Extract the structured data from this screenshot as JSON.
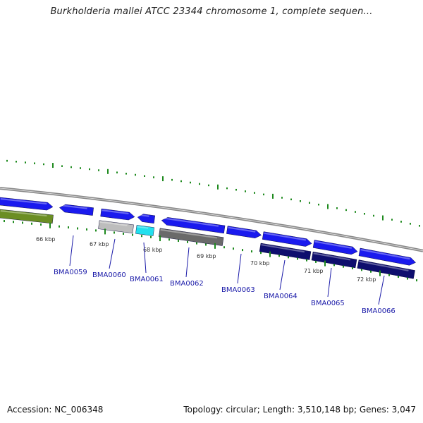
{
  "title": "Burkholderia mallei ATCC 23344 chromosome 1, complete sequen...",
  "footer": {
    "accession": "Accession: NC_006348",
    "summary": "Topology: circular; Length: 3,510,148 bp; Genes: 3,047"
  },
  "colors": {
    "backbone": "#888888",
    "gene_blue": "#1a1aee",
    "gene_olive": "#6b8e23",
    "gene_silver": "#bdbdbd",
    "gene_cyan": "#22e0ee",
    "gene_darkgray": "#6a6a6a",
    "gene_navy": "#0e0e6e",
    "tick": "#1e8a1e",
    "label": "#1a1aa8"
  },
  "scale_labels": [
    "66 kbp",
    "67 kbp",
    "68 kbp",
    "69 kbp",
    "70 kbp",
    "71 kbp",
    "72 kbp"
  ],
  "gene_labels": [
    "BMA0059",
    "BMA0060",
    "BMA0061",
    "BMA0062",
    "BMA0063",
    "BMA0064",
    "BMA0065",
    "BMA0066"
  ]
}
